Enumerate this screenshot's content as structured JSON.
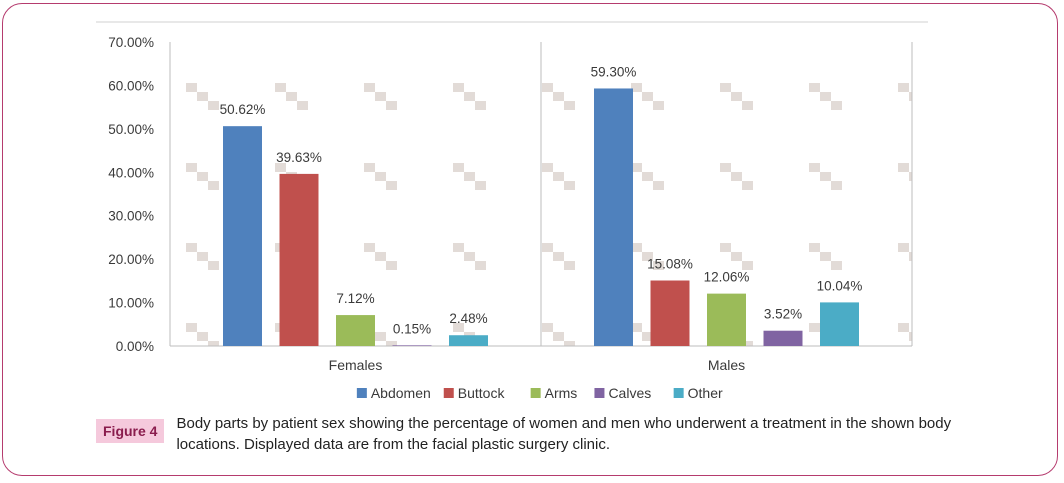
{
  "chart_data": {
    "type": "bar",
    "groups": [
      "Females",
      "Males"
    ],
    "series": [
      {
        "name": "Abdomen",
        "color": "#4f81bd",
        "values": [
          50.62,
          59.3
        ],
        "labels": [
          "50.62%",
          "59.30%"
        ]
      },
      {
        "name": "Buttock",
        "color": "#c0504d",
        "values": [
          39.63,
          15.08
        ],
        "labels": [
          "39.63%",
          "15.08%"
        ]
      },
      {
        "name": "Arms",
        "color": "#9bbb59",
        "values": [
          7.12,
          12.06
        ],
        "labels": [
          "7.12%",
          "12.06%"
        ]
      },
      {
        "name": "Calves",
        "color": "#8064a2",
        "values": [
          0.15,
          3.52
        ],
        "labels": [
          "0.15%",
          "3.52%"
        ]
      },
      {
        "name": "Other",
        "color": "#4bacc6",
        "values": [
          2.48,
          10.04
        ],
        "labels": [
          "2.48%",
          "10.04%"
        ]
      }
    ],
    "y_ticks": [
      "0.00%",
      "10.00%",
      "20.00%",
      "30.00%",
      "40.00%",
      "50.00%",
      "60.00%",
      "70.00%"
    ],
    "ylim": [
      0,
      70
    ],
    "legend_position": "bottom"
  },
  "caption": {
    "figure_label": "Figure 4",
    "text": "Body parts by patient sex showing the percentage of women and men who underwent a treatment in the shown body locations. Displayed data are from the facial plastic surgery clinic."
  }
}
